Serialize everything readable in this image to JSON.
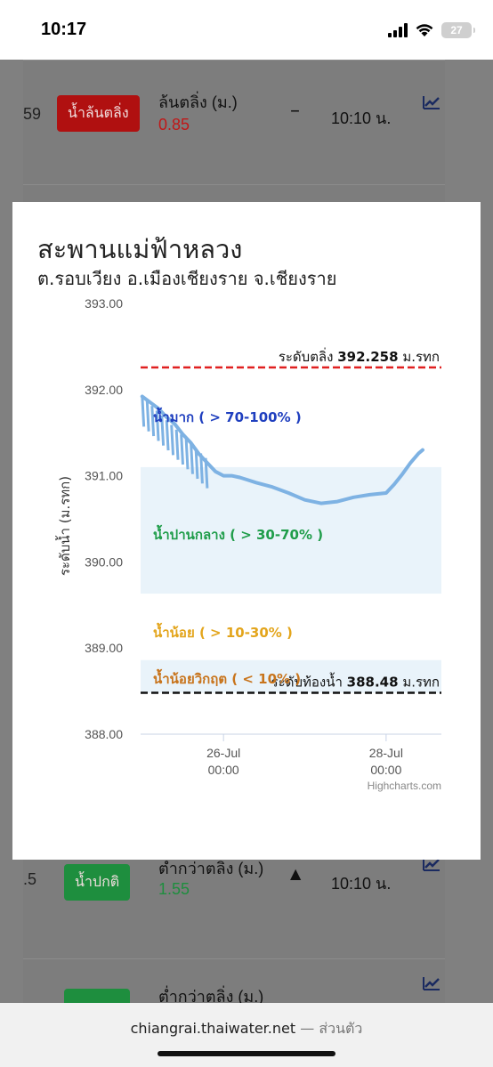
{
  "status_bar": {
    "time": "10:17",
    "battery": "27"
  },
  "background_rows": [
    {
      "num": "59",
      "badge": "น้ำล้นตลิ่ง",
      "badge_color": "#b01010",
      "label": "ล้นตลิ่ง (ม.)",
      "value": "0.85",
      "value_color": "#d11a1a",
      "trend": "–",
      "time": "10:10 น."
    },
    {
      "num": ".5",
      "badge": "น้ำปกติ",
      "badge_color": "#1e8e3e",
      "label": "ต่ำกว่าตลิ่ง (ม.)",
      "value": "1.55",
      "value_color": "#1e8e3e",
      "trend": "▲",
      "time": "10:10 น."
    },
    {
      "num": "",
      "badge": "",
      "badge_color": "#1e8e3e",
      "label": "ต่ำกว่าตลิ่ง (ม.)",
      "value": "",
      "value_color": "#1e8e3e",
      "trend": "",
      "time": ""
    }
  ],
  "modal": {
    "title": "สะพานแม่ฟ้าหลวง",
    "subtitle": "ต.รอบเวียง อ.เมืองเชียงราย จ.เชียงราย"
  },
  "chart_data": {
    "type": "line",
    "ylabel": "ระดับน้ำ (ม.รทก)",
    "ylim": [
      388.0,
      393.0
    ],
    "yticks": [
      "393.00",
      "392.00",
      "391.00",
      "390.00",
      "389.00",
      "388.00"
    ],
    "xticks": [
      {
        "date": "26-Jul",
        "time": "00:00",
        "x_day": 26.0
      },
      {
        "date": "28-Jul",
        "time": "00:00",
        "x_day": 28.0
      }
    ],
    "xlim_day": [
      24.98,
      28.68
    ],
    "bank_line": {
      "label": "ระดับตลิ่ง",
      "value": 392.258,
      "value_text": "392.258",
      "unit": "ม.รทก",
      "color": "#e02020"
    },
    "bed_line": {
      "label": "ระดับท้องน้ำ",
      "value": 388.48,
      "value_text": "388.48",
      "unit": "ม.รทก",
      "color": "#111111"
    },
    "bands": [
      {
        "label": "น้ำมาก ( > 70-100% )",
        "from": 391.1,
        "to": 392.258,
        "color": "#ffffff",
        "text_color": "#1f3fbf"
      },
      {
        "label": "น้ำปานกลาง ( > 30-70% )",
        "from": 389.63,
        "to": 391.1,
        "color": "#e9f3fa",
        "text_color": "#1f9d4a"
      },
      {
        "label": "น้ำน้อย ( > 10-30% )",
        "from": 388.86,
        "to": 389.63,
        "color": "#ffffff",
        "text_color": "#e3a51c"
      },
      {
        "label": "น้ำน้อยวิกฤต ( < 10% )",
        "from": 388.48,
        "to": 388.86,
        "color": "#e9f3fa",
        "text_color": "#c8741c"
      }
    ],
    "series": [
      {
        "color": "#7eb2e3",
        "x": [
          25.0,
          25.1,
          25.2,
          25.3,
          25.4,
          25.5,
          25.6,
          25.7,
          25.8,
          25.9,
          26.0,
          26.1,
          26.2,
          26.3,
          26.4,
          26.6,
          26.8,
          27.0,
          27.2,
          27.4,
          27.6,
          27.8,
          28.0,
          28.1,
          28.2,
          28.3,
          28.4,
          28.45
        ],
        "y": [
          391.92,
          391.85,
          391.78,
          391.68,
          391.6,
          391.48,
          391.38,
          391.25,
          391.15,
          391.05,
          391.0,
          391.0,
          390.98,
          390.95,
          390.92,
          390.87,
          390.8,
          390.72,
          390.68,
          390.7,
          390.75,
          390.78,
          390.8,
          390.9,
          391.02,
          391.15,
          391.26,
          391.3
        ]
      }
    ],
    "credits": "Highcharts.com"
  },
  "address_bar": {
    "domain": "chiangrai.thaiwater.net",
    "suffix": "— ส่วนตัว"
  }
}
